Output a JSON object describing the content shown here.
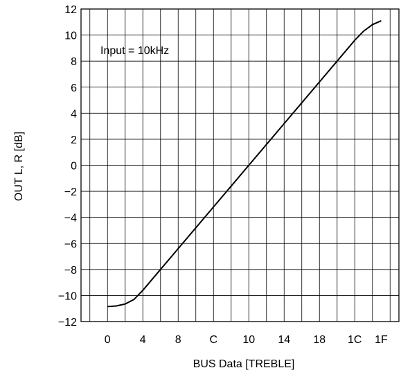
{
  "chart_data": {
    "type": "line",
    "xlabel": "BUS Data [TREBLE]",
    "ylabel": "OUT L, R [dB]",
    "annotation": "Input = 10kHz",
    "x_tick_labels": [
      "0",
      "4",
      "8",
      "C",
      "10",
      "14",
      "18",
      "1C",
      "1F"
    ],
    "x_tick_values": [
      0,
      4,
      8,
      12,
      16,
      20,
      24,
      28,
      31
    ],
    "xlim": [
      -3,
      33
    ],
    "ylim": [
      -12,
      12
    ],
    "y_ticks": [
      -12,
      -10,
      -8,
      -6,
      -4,
      -2,
      0,
      2,
      4,
      6,
      8,
      10,
      12
    ],
    "y_tick_labels": [
      "−12",
      "−10",
      "−8",
      "−6",
      "−4",
      "−2",
      "0",
      "2",
      "4",
      "6",
      "8",
      "10",
      "12"
    ],
    "grid": true,
    "series": [
      {
        "values_x": [
          0,
          1,
          2,
          3,
          4,
          6,
          8,
          10,
          12,
          14,
          16,
          18,
          20,
          22,
          24,
          26,
          28,
          29,
          30,
          31
        ],
        "values_y": [
          -10.85,
          -10.8,
          -10.65,
          -10.3,
          -9.6,
          -8.0,
          -6.4,
          -4.8,
          -3.2,
          -1.6,
          0,
          1.6,
          3.2,
          4.8,
          6.4,
          8.0,
          9.6,
          10.3,
          10.8,
          11.1
        ]
      }
    ]
  }
}
